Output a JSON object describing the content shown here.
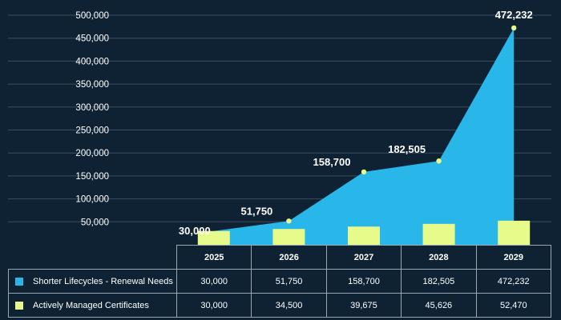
{
  "chart_data": {
    "type": "bar",
    "categories": [
      "2025",
      "2026",
      "2027",
      "2028",
      "2029"
    ],
    "yticks": [
      "50,000",
      "100,000",
      "150,000",
      "200,000",
      "250,000",
      "300,000",
      "350,000",
      "400,000",
      "450,000",
      "500,000"
    ],
    "ylim": [
      0,
      500000
    ],
    "grid": true,
    "series": [
      {
        "name": "Shorter Lifecycles - Renewal Needs",
        "kind": "area",
        "color": "#29b6e8",
        "values": [
          30000,
          51750,
          158700,
          182505,
          472232
        ],
        "labels": [
          "30,000",
          "51,750",
          "158,700",
          "182,505",
          "472,232"
        ]
      },
      {
        "name": "Actively Managed Certificates",
        "kind": "bar",
        "color": "#e6fb8a",
        "values": [
          30000,
          34500,
          39675,
          45626,
          52470
        ],
        "labels": [
          "30,000",
          "34,500",
          "39,675",
          "45,626",
          "52,470"
        ]
      }
    ],
    "marker_color": "#e6fb8a"
  }
}
